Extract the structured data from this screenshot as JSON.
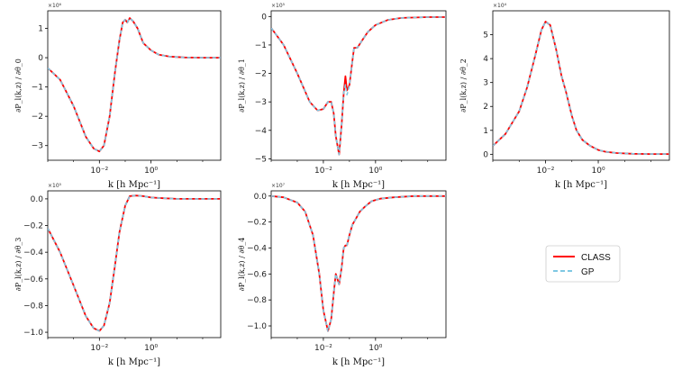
{
  "chart_data": [
    {
      "type": "line",
      "panel": "theta0",
      "ylabel": "∂P_l(k,z) / ∂θ_0",
      "xlabel": "k [h Mpc⁻¹]",
      "xscale": "log",
      "xlim": [
        0.0001,
        500
      ],
      "ylim": [
        -3.5,
        1.6
      ],
      "yticks": [
        -3,
        -2,
        -1,
        0,
        1
      ],
      "ytick_labels": [
        "−3",
        "−2",
        "−1",
        "0",
        "1"
      ],
      "y_exponent": "×10⁶",
      "xticks": [
        0.01,
        1
      ],
      "xtick_labels": [
        "10⁻²",
        "10⁰"
      ],
      "series": [
        {
          "name": "CLASS",
          "color": "#ff0000",
          "x": [
            0.0001,
            0.0003,
            0.001,
            0.003,
            0.006,
            0.01,
            0.015,
            0.025,
            0.04,
            0.06,
            0.08,
            0.1,
            0.12,
            0.15,
            0.2,
            0.3,
            0.5,
            1,
            2,
            5,
            20,
            100,
            500
          ],
          "y": [
            -0.35,
            -0.75,
            -1.65,
            -2.7,
            -3.1,
            -3.2,
            -3.0,
            -2.0,
            -0.5,
            0.6,
            1.2,
            1.3,
            1.2,
            1.35,
            1.25,
            1.0,
            0.5,
            0.25,
            0.1,
            0.04,
            0.01,
            0.0,
            0.0
          ]
        },
        {
          "name": "GP",
          "color": "#7ec8e3",
          "x": [
            0.0001,
            0.0003,
            0.001,
            0.003,
            0.006,
            0.01,
            0.015,
            0.025,
            0.04,
            0.06,
            0.08,
            0.1,
            0.12,
            0.15,
            0.2,
            0.3,
            0.5,
            1,
            2,
            5,
            20,
            100,
            500
          ],
          "y": [
            -0.35,
            -0.75,
            -1.65,
            -2.7,
            -3.1,
            -3.2,
            -3.0,
            -2.0,
            -0.5,
            0.6,
            1.2,
            1.3,
            1.2,
            1.35,
            1.25,
            1.0,
            0.5,
            0.25,
            0.1,
            0.04,
            0.01,
            0.0,
            0.0
          ]
        }
      ]
    },
    {
      "type": "line",
      "panel": "theta1",
      "ylabel": "∂P_l(k,z) / ∂θ_1",
      "xlabel": "k [h Mpc⁻¹]",
      "xscale": "log",
      "xlim": [
        0.0001,
        500
      ],
      "ylim": [
        -5.05,
        0.2
      ],
      "yticks": [
        -5,
        -4,
        -3,
        -2,
        -1,
        0
      ],
      "ytick_labels": [
        "−5",
        "−4",
        "−3",
        "−2",
        "−1",
        "0"
      ],
      "y_exponent": "×10⁵",
      "xticks": [
        0.01,
        1
      ],
      "xtick_labels": [
        "10⁻²",
        "10⁰"
      ],
      "series": [
        {
          "name": "CLASS",
          "color": "#ff0000",
          "x": [
            0.0001,
            0.0003,
            0.001,
            0.003,
            0.006,
            0.01,
            0.015,
            0.02,
            0.025,
            0.03,
            0.04,
            0.05,
            0.06,
            0.07,
            0.08,
            0.09,
            0.1,
            0.12,
            0.15,
            0.2,
            0.3,
            0.5,
            1,
            3,
            10,
            100,
            500
          ],
          "y": [
            -0.4,
            -1.0,
            -2.0,
            -3.0,
            -3.3,
            -3.25,
            -3.0,
            -3.0,
            -3.4,
            -4.2,
            -4.85,
            -3.8,
            -2.7,
            -2.1,
            -2.6,
            -2.5,
            -2.4,
            -1.8,
            -1.1,
            -1.1,
            -0.85,
            -0.55,
            -0.3,
            -0.12,
            -0.05,
            -0.02,
            -0.02
          ]
        },
        {
          "name": "GP",
          "color": "#7ec8e3",
          "x": [
            0.0001,
            0.0003,
            0.001,
            0.003,
            0.006,
            0.01,
            0.015,
            0.02,
            0.025,
            0.03,
            0.04,
            0.05,
            0.06,
            0.07,
            0.08,
            0.09,
            0.1,
            0.12,
            0.15,
            0.2,
            0.3,
            0.5,
            1,
            3,
            10,
            100,
            500
          ],
          "y": [
            -0.4,
            -1.0,
            -2.0,
            -3.0,
            -3.3,
            -3.25,
            -3.0,
            -3.0,
            -3.4,
            -4.2,
            -4.85,
            -3.8,
            -2.7,
            -2.4,
            -2.75,
            -2.6,
            -2.4,
            -1.8,
            -1.1,
            -1.1,
            -0.85,
            -0.55,
            -0.3,
            -0.12,
            -0.05,
            -0.02,
            -0.02
          ]
        }
      ]
    },
    {
      "type": "line",
      "panel": "theta2",
      "ylabel": "∂P_l(k,z) / ∂θ_2",
      "xlabel": "k [h Mpc⁻¹]",
      "xscale": "log",
      "xlim": [
        0.0001,
        500
      ],
      "ylim": [
        -0.25,
        6.0
      ],
      "yticks": [
        0,
        1,
        2,
        3,
        4,
        5
      ],
      "ytick_labels": [
        "0",
        "1",
        "2",
        "3",
        "4",
        "5"
      ],
      "y_exponent": "×10⁴",
      "xticks": [
        0.01,
        1
      ],
      "xtick_labels": [
        "10⁻²",
        "10⁰"
      ],
      "series": [
        {
          "name": "CLASS",
          "color": "#ff0000",
          "x": [
            0.0001,
            0.0003,
            0.001,
            0.002,
            0.004,
            0.007,
            0.01,
            0.015,
            0.025,
            0.04,
            0.06,
            0.1,
            0.15,
            0.25,
            0.5,
            1,
            2,
            5,
            20,
            100,
            500
          ],
          "y": [
            0.35,
            0.85,
            1.8,
            2.8,
            4.1,
            5.2,
            5.55,
            5.4,
            4.4,
            3.3,
            2.6,
            1.6,
            1.0,
            0.6,
            0.35,
            0.18,
            0.1,
            0.05,
            0.02,
            0.01,
            0.01
          ]
        },
        {
          "name": "GP",
          "color": "#7ec8e3",
          "x": [
            0.0001,
            0.0003,
            0.001,
            0.002,
            0.004,
            0.007,
            0.01,
            0.015,
            0.025,
            0.04,
            0.06,
            0.1,
            0.15,
            0.25,
            0.5,
            1,
            2,
            5,
            20,
            100,
            500
          ],
          "y": [
            0.35,
            0.85,
            1.8,
            2.8,
            4.1,
            5.2,
            5.55,
            5.4,
            4.4,
            3.3,
            2.6,
            1.6,
            1.0,
            0.6,
            0.35,
            0.18,
            0.1,
            0.05,
            0.02,
            0.01,
            0.01
          ]
        }
      ]
    },
    {
      "type": "line",
      "panel": "theta3",
      "ylabel": "∂P_l(k,z) / ∂θ_3",
      "xlabel": "k [h Mpc⁻¹]",
      "xscale": "log",
      "xlim": [
        0.0001,
        500
      ],
      "ylim": [
        -1.04,
        0.06
      ],
      "yticks": [
        -1.0,
        -0.8,
        -0.6,
        -0.4,
        -0.2,
        0.0
      ],
      "ytick_labels": [
        "−1.0",
        "−0.8",
        "−0.6",
        "−0.4",
        "−0.2",
        "0.0"
      ],
      "y_exponent": "×10⁵",
      "xticks": [
        0.01,
        1
      ],
      "xtick_labels": [
        "10⁻²",
        "10⁰"
      ],
      "series": [
        {
          "name": "CLASS",
          "color": "#ff0000",
          "x": [
            0.0001,
            0.0003,
            0.001,
            0.003,
            0.006,
            0.01,
            0.015,
            0.025,
            0.04,
            0.06,
            0.1,
            0.15,
            0.25,
            0.5,
            1,
            3,
            10,
            100,
            500
          ],
          "y": [
            -0.22,
            -0.4,
            -0.65,
            -0.88,
            -0.97,
            -0.99,
            -0.95,
            -0.78,
            -0.5,
            -0.25,
            -0.05,
            0.02,
            0.025,
            0.02,
            0.01,
            0.005,
            0.0,
            0.0,
            0.0
          ]
        },
        {
          "name": "GP",
          "color": "#7ec8e3",
          "x": [
            0.0001,
            0.0003,
            0.001,
            0.003,
            0.006,
            0.01,
            0.015,
            0.025,
            0.04,
            0.06,
            0.1,
            0.15,
            0.25,
            0.5,
            1,
            3,
            10,
            100,
            500
          ],
          "y": [
            -0.22,
            -0.4,
            -0.65,
            -0.88,
            -0.97,
            -0.99,
            -0.95,
            -0.78,
            -0.5,
            -0.25,
            -0.05,
            0.02,
            0.025,
            0.02,
            0.01,
            0.005,
            0.0,
            0.0,
            0.0
          ]
        }
      ]
    },
    {
      "type": "line",
      "panel": "theta4",
      "ylabel": "∂P_l(k,z) / ∂θ_4",
      "xlabel": "k [h Mpc⁻¹]",
      "xscale": "log",
      "xlim": [
        0.0001,
        500
      ],
      "ylim": [
        -1.09,
        0.04
      ],
      "yticks": [
        -1.0,
        -0.8,
        -0.6,
        -0.4,
        -0.2,
        0.0
      ],
      "ytick_labels": [
        "−1.0",
        "−0.8",
        "−0.6",
        "−0.4",
        "−0.2",
        "0.0"
      ],
      "y_exponent": "×10⁷",
      "xticks": [
        0.01,
        1
      ],
      "xtick_labels": [
        "10⁻²",
        "10⁰"
      ],
      "series": [
        {
          "name": "CLASS",
          "color": "#ff0000",
          "x": [
            0.0001,
            0.0003,
            0.001,
            0.002,
            0.004,
            0.007,
            0.01,
            0.015,
            0.02,
            0.025,
            0.03,
            0.04,
            0.05,
            0.06,
            0.07,
            0.08,
            0.1,
            0.13,
            0.17,
            0.25,
            0.4,
            0.7,
            1.5,
            5,
            30,
            500
          ],
          "y": [
            0.0,
            -0.01,
            -0.05,
            -0.12,
            -0.3,
            -0.6,
            -0.88,
            -1.04,
            -0.95,
            -0.75,
            -0.6,
            -0.68,
            -0.55,
            -0.4,
            -0.38,
            -0.38,
            -0.3,
            -0.22,
            -0.18,
            -0.12,
            -0.08,
            -0.04,
            -0.02,
            -0.01,
            0.0,
            0.0
          ]
        },
        {
          "name": "GP",
          "color": "#7ec8e3",
          "x": [
            0.0001,
            0.0003,
            0.001,
            0.002,
            0.004,
            0.007,
            0.01,
            0.015,
            0.02,
            0.025,
            0.03,
            0.04,
            0.05,
            0.06,
            0.07,
            0.08,
            0.1,
            0.13,
            0.17,
            0.25,
            0.4,
            0.7,
            1.5,
            5,
            30,
            500
          ],
          "y": [
            0.0,
            -0.01,
            -0.05,
            -0.12,
            -0.3,
            -0.6,
            -0.88,
            -1.04,
            -0.95,
            -0.75,
            -0.6,
            -0.68,
            -0.55,
            -0.4,
            -0.38,
            -0.38,
            -0.3,
            -0.22,
            -0.18,
            -0.12,
            -0.08,
            -0.04,
            -0.02,
            -0.01,
            0.0,
            0.0
          ]
        }
      ]
    }
  ],
  "legend": {
    "entries": [
      {
        "label": "CLASS",
        "color": "#ff0000",
        "style": "solid"
      },
      {
        "label": "GP",
        "color": "#7ec8e3",
        "style": "dashed"
      }
    ]
  }
}
